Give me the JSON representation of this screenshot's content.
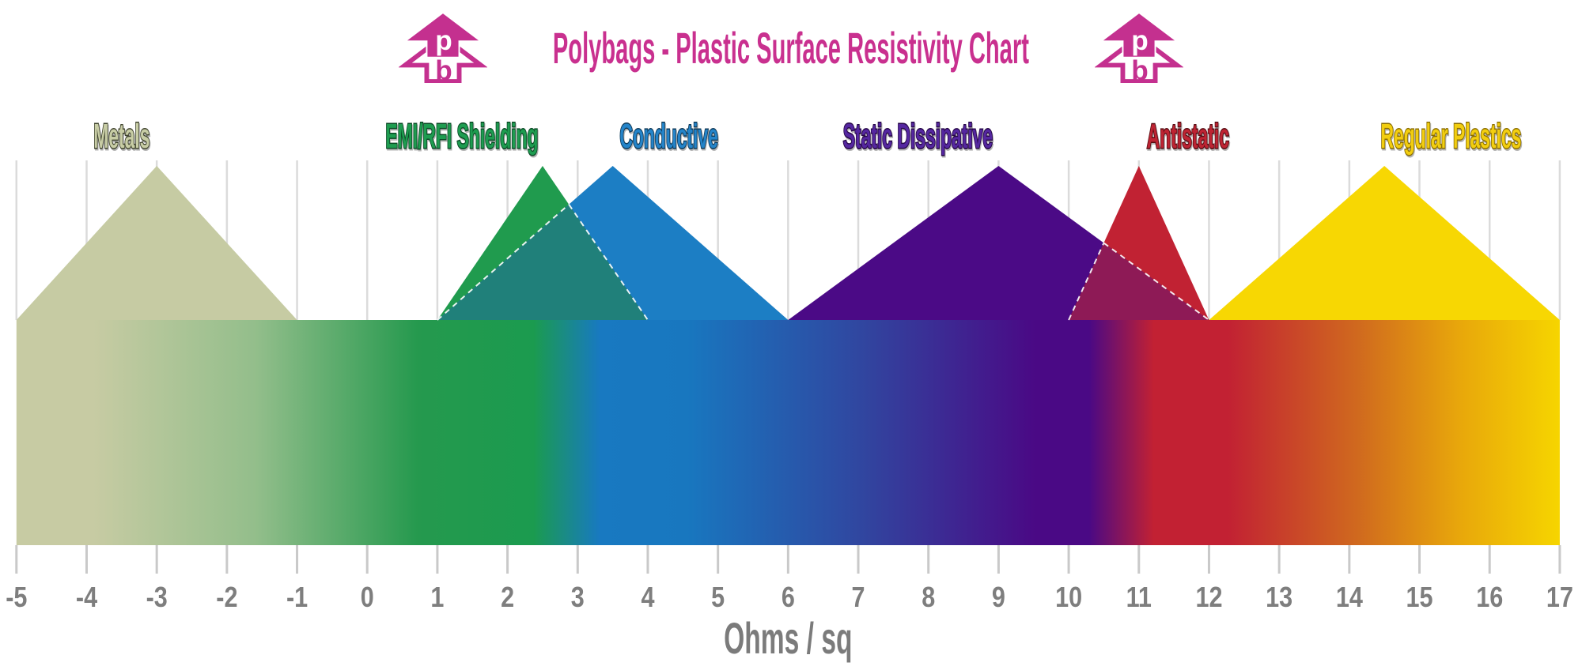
{
  "title": {
    "text": "Polybags - Plastic Surface Resistivity Chart",
    "color": "#C9308F"
  },
  "logo": {
    "top_letter": "p",
    "bottom_letter": "b",
    "color": "#C4308F",
    "letter_on_solid_color": "#FFFFFF"
  },
  "chart_data": {
    "type": "area",
    "title": "Polybags - Plastic Surface Resistivity Chart",
    "xlabel": "Ohms / sq",
    "xlim": [
      -5,
      17
    ],
    "x_ticks": [
      -5,
      -4,
      -3,
      -2,
      -1,
      0,
      1,
      2,
      3,
      4,
      5,
      6,
      7,
      8,
      9,
      10,
      11,
      12,
      13,
      14,
      15,
      16,
      17
    ],
    "grid": true,
    "legend": "none",
    "grid_color": "#DBDBDB",
    "tick_color": "#C9C9C9",
    "number_color": "#7E7E7E",
    "xlabel_color": "#7B7B7B",
    "series": [
      {
        "name": "Metals",
        "range": [
          -5,
          -1
        ],
        "peak": -3,
        "fill": "#C6CBA3",
        "label_color": "#C8CDA5",
        "outline_color": "#40442F",
        "label_anchor": -3.5
      },
      {
        "name": "EMI/RFI Shielding",
        "range": [
          1,
          4
        ],
        "peak": 2.5,
        "fill": "#209B4E",
        "label_color": "#1E9C50",
        "outline_color": "#0B4A26",
        "label_anchor": 1.35
      },
      {
        "name": "Conductive",
        "range": [
          1,
          6
        ],
        "peak": 3.5,
        "fill": "#1C7EC4",
        "label_color": "#2484C9",
        "outline_color": "#103A58",
        "label_anchor": 4.3
      },
      {
        "name": "Static Dissipative",
        "range": [
          6,
          12
        ],
        "peak": 9,
        "fill": "#4B0A86",
        "label_color": "#5527A0",
        "outline_color": "#260747",
        "label_anchor": 7.85
      },
      {
        "name": "Antistatic",
        "range": [
          10,
          12
        ],
        "peak": 11,
        "fill": "#C12233",
        "label_color": "#BE2433",
        "outline_color": "#570D13",
        "label_anchor": 11.7
      },
      {
        "name": "Regular Plastics",
        "range": [
          12,
          17
        ],
        "peak": 14.5,
        "fill": "#F7D703",
        "label_color": "#F2CE10",
        "outline_color": "#8A6D00",
        "label_anchor": 15.45
      }
    ],
    "overlaps": [
      {
        "between": [
          "EMI/RFI Shielding",
          "Conductive"
        ],
        "fill": "#20807A",
        "edge_style": "dashed-white"
      },
      {
        "between": [
          "Static Dissipative",
          "Antistatic"
        ],
        "fill": "#8E1A56",
        "edge_style": "dashed-white"
      }
    ],
    "bar_gradient": [
      {
        "offset": 0,
        "color": "#C7CBA3"
      },
      {
        "offset": 0.05,
        "color": "#C7CBA3"
      },
      {
        "offset": 0.155,
        "color": "#93BE8B"
      },
      {
        "offset": 0.26,
        "color": "#25994E"
      },
      {
        "offset": 0.335,
        "color": "#1B9B4F"
      },
      {
        "offset": 0.378,
        "color": "#1879C1"
      },
      {
        "offset": 0.435,
        "color": "#1877BF"
      },
      {
        "offset": 0.55,
        "color": "#31459F"
      },
      {
        "offset": 0.66,
        "color": "#4A0985"
      },
      {
        "offset": 0.695,
        "color": "#4A0985"
      },
      {
        "offset": 0.737,
        "color": "#C22133"
      },
      {
        "offset": 0.785,
        "color": "#C22133"
      },
      {
        "offset": 0.87,
        "color": "#D06A1E"
      },
      {
        "offset": 0.935,
        "color": "#E8A70B"
      },
      {
        "offset": 1,
        "color": "#F6D500"
      }
    ]
  }
}
